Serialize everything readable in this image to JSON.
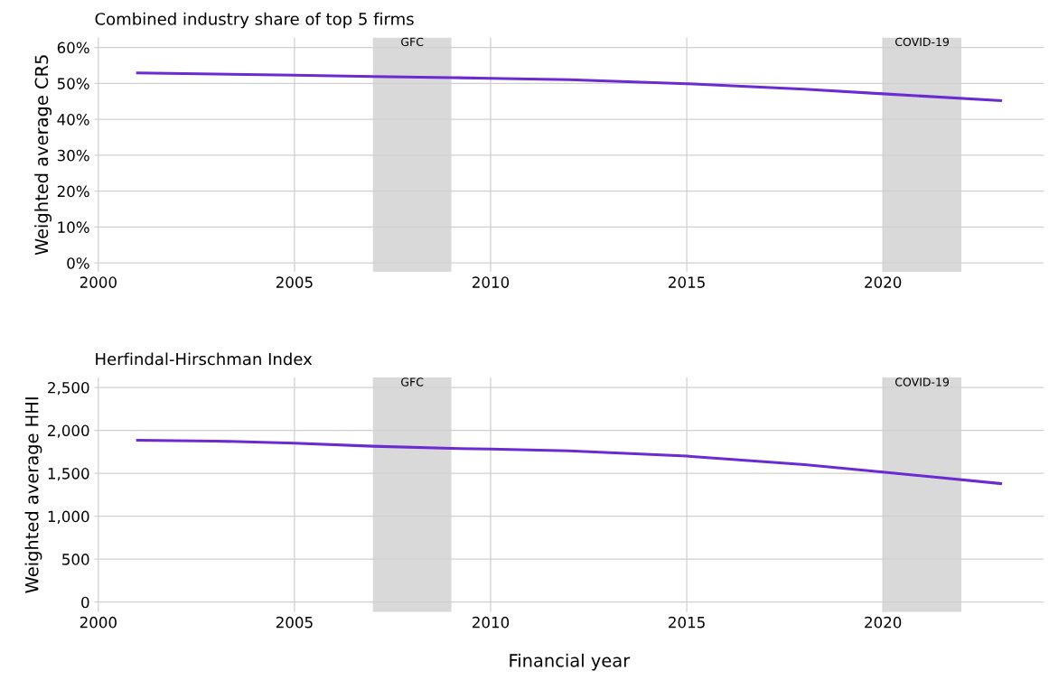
{
  "chart_data": [
    {
      "type": "line",
      "title": "Combined industry share of top 5 firms",
      "ylabel": "Weighted average CR5",
      "x": [
        2001,
        2003,
        2005,
        2007,
        2009,
        2010,
        2012,
        2015,
        2018,
        2020,
        2023
      ],
      "series": [
        {
          "color": "#6b2bd3",
          "values": [
            52.9,
            52.6,
            52.3,
            51.9,
            51.6,
            51.4,
            51.0,
            49.9,
            48.4,
            47.1,
            45.2
          ]
        }
      ],
      "xlim": [
        1999.9,
        2024.1
      ],
      "xticks": [
        2000,
        2005,
        2010,
        2015,
        2020
      ],
      "ylim": [
        -2.5,
        62.8
      ],
      "yticks": [
        {
          "value": 0,
          "label": "0%"
        },
        {
          "value": 10,
          "label": "10%"
        },
        {
          "value": 20,
          "label": "20%"
        },
        {
          "value": 30,
          "label": "30%"
        },
        {
          "value": 40,
          "label": "40%"
        },
        {
          "value": 50,
          "label": "50%"
        },
        {
          "value": 60,
          "label": "60%"
        }
      ],
      "bands": [
        {
          "axis": "x",
          "from": 2007,
          "to": 2009,
          "label": "GFC",
          "color": "#d9d9d9"
        },
        {
          "axis": "x",
          "from": 2020,
          "to": 2022,
          "label": "COVID-19",
          "color": "#d9d9d9"
        }
      ],
      "grid": true,
      "legend": false
    },
    {
      "type": "line",
      "title": "Herfindal-Hirschman Index",
      "ylabel": "Weighted average HHI",
      "xlabel": "Financial year",
      "x": [
        2001,
        2003,
        2005,
        2007,
        2009,
        2010,
        2012,
        2015,
        2018,
        2020,
        2023
      ],
      "series": [
        {
          "color": "#6b2bd3",
          "values": [
            1885,
            1875,
            1850,
            1815,
            1790,
            1782,
            1762,
            1700,
            1600,
            1515,
            1380
          ]
        }
      ],
      "xlim": [
        1999.9,
        2024.1
      ],
      "xticks": [
        2000,
        2005,
        2010,
        2015,
        2020
      ],
      "ylim": [
        -116,
        2616
      ],
      "yticks": [
        {
          "value": 0,
          "label": "0"
        },
        {
          "value": 500,
          "label": "500"
        },
        {
          "value": 1000,
          "label": "1,000"
        },
        {
          "value": 1500,
          "label": "1,500"
        },
        {
          "value": 2000,
          "label": "2,000"
        },
        {
          "value": 2500,
          "label": "2,500"
        }
      ],
      "bands": [
        {
          "axis": "x",
          "from": 2007,
          "to": 2009,
          "label": "GFC",
          "color": "#d9d9d9"
        },
        {
          "axis": "x",
          "from": 2020,
          "to": 2022,
          "label": "COVID-19",
          "color": "#d9d9d9"
        }
      ],
      "grid": true,
      "legend": false
    }
  ]
}
